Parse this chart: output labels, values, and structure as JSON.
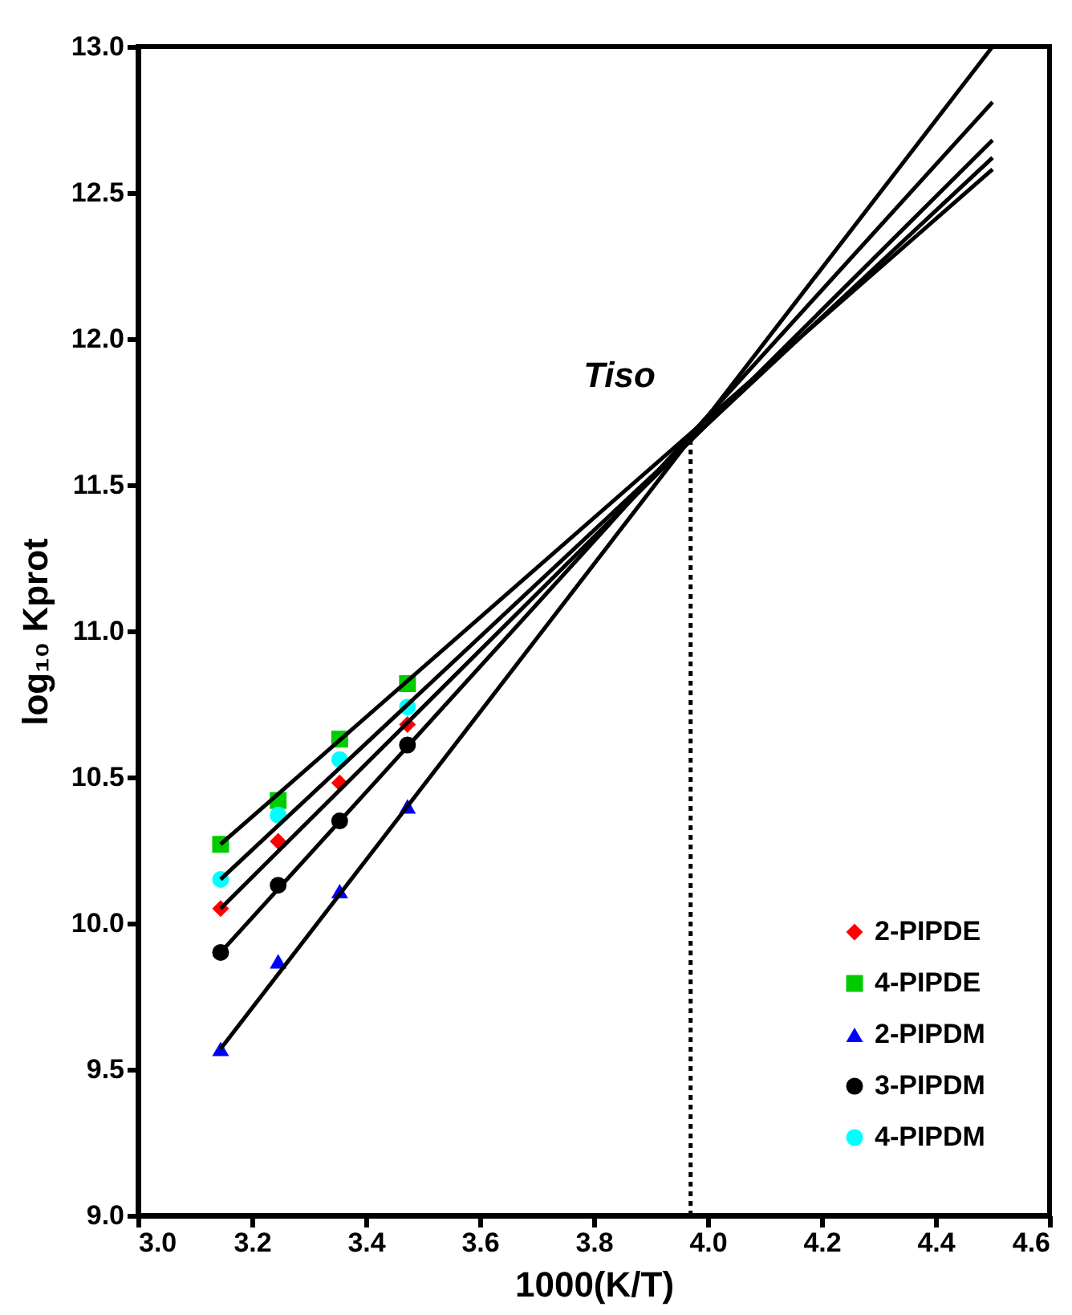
{
  "chart_data": {
    "type": "scatter",
    "xlabel": "1000(K/T)",
    "ylabel": "log₁₀ Kprot",
    "xlim": [
      3.0,
      4.6
    ],
    "ylim": [
      9.0,
      13.0
    ],
    "xticks": [
      {
        "value": 3.0,
        "label": "3.0"
      },
      {
        "value": 3.2,
        "label": "3.2"
      },
      {
        "value": 3.4,
        "label": "3.4"
      },
      {
        "value": 3.6,
        "label": "3.6"
      },
      {
        "value": 3.8,
        "label": "3.8"
      },
      {
        "value": 4.0,
        "label": "4.0"
      },
      {
        "value": 4.2,
        "label": "4.2"
      },
      {
        "value": 4.4,
        "label": "4.4"
      },
      {
        "value": 4.6,
        "label": "4.6"
      }
    ],
    "yticks": [
      {
        "value": 9.0,
        "label": "9.0"
      },
      {
        "value": 9.5,
        "label": "9.5"
      },
      {
        "value": 10.0,
        "label": "10.0"
      },
      {
        "value": 10.5,
        "label": "10.5"
      },
      {
        "value": 11.0,
        "label": "11.0"
      },
      {
        "value": 11.5,
        "label": "11.5"
      },
      {
        "value": 12.0,
        "label": "12.0"
      },
      {
        "value": 12.5,
        "label": "12.5"
      },
      {
        "value": 13.0,
        "label": "13.0"
      }
    ],
    "grid": false,
    "legend": "bottom right",
    "x": [
      3.145,
      3.246,
      3.354,
      3.473
    ],
    "series": [
      {
        "name": "2-PIPDE",
        "color": "#ff0000",
        "marker": "diamond",
        "values": [
          10.05,
          10.28,
          10.48,
          10.68
        ]
      },
      {
        "name": "4-PIPDE",
        "color": "#00cc00",
        "marker": "square",
        "values": [
          10.27,
          10.42,
          10.63,
          10.82
        ]
      },
      {
        "name": "2-PIPDM",
        "color": "#0000ff",
        "marker": "triangle",
        "values": [
          9.57,
          9.87,
          10.11,
          10.4
        ]
      },
      {
        "name": "3-PIPDM",
        "color": "#000000",
        "marker": "circle",
        "values": [
          9.9,
          10.13,
          10.35,
          10.61
        ]
      },
      {
        "name": "4-PIPDM",
        "color": "#00ffff",
        "marker": "circle",
        "values": [
          10.15,
          10.37,
          10.56,
          10.74
        ]
      },
      {
        "type": "line",
        "color": "#000000",
        "line_style": "solid",
        "x": [
          3.145,
          4.5
        ],
        "values": [
          10.05,
          12.68
        ]
      },
      {
        "type": "line",
        "color": "#000000",
        "line_style": "solid",
        "x": [
          3.145,
          4.5
        ],
        "values": [
          10.27,
          12.58
        ]
      },
      {
        "type": "line",
        "color": "#000000",
        "line_style": "solid",
        "x": [
          3.145,
          4.5
        ],
        "values": [
          9.57,
          13.0
        ]
      },
      {
        "type": "line",
        "color": "#000000",
        "line_style": "solid",
        "x": [
          3.145,
          4.5
        ],
        "values": [
          9.9,
          12.81
        ]
      },
      {
        "type": "line",
        "color": "#000000",
        "line_style": "solid",
        "x": [
          3.145,
          4.5
        ],
        "values": [
          10.15,
          12.62
        ]
      },
      {
        "type": "line",
        "color": "#000000",
        "line_style": "dotted",
        "x": [
          3.97,
          3.97
        ],
        "values": [
          9.0,
          11.65
        ]
      }
    ],
    "annotations": [
      "Tiso"
    ]
  }
}
